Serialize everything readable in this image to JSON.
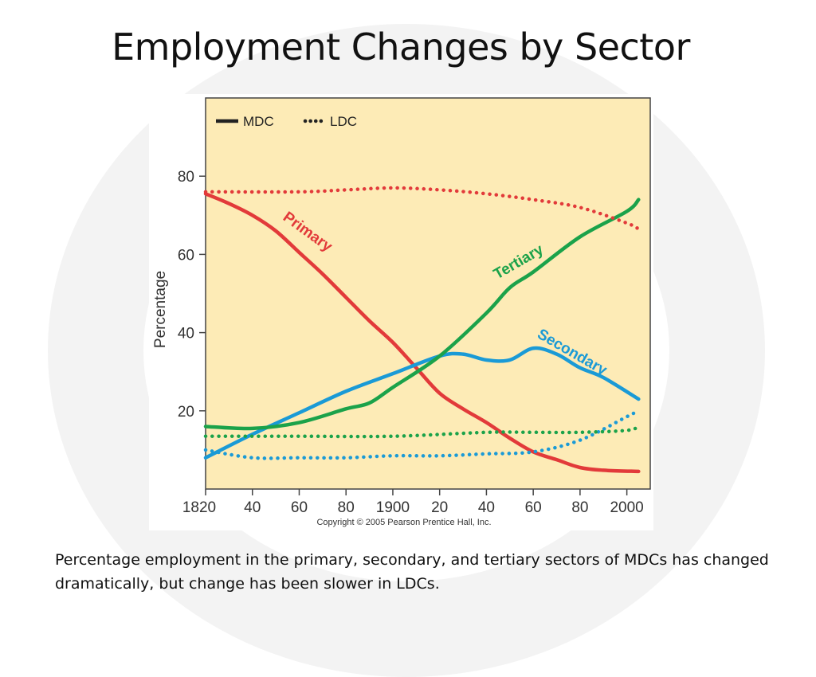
{
  "slide": {
    "title": "Employment Changes by Sector",
    "caption": "Percentage employment in the primary, secondary, and tertiary sectors of MDCs has changed dramatically, but change has been slower in LDCs."
  },
  "chart_data": {
    "type": "line",
    "title": "",
    "xlabel": "",
    "ylabel": "Percentage",
    "xlim": [
      1820,
      2010
    ],
    "ylim": [
      0,
      100
    ],
    "x_ticks": [
      1820,
      1840,
      1860,
      1880,
      1900,
      1920,
      1940,
      1960,
      1980,
      2000
    ],
    "x_tick_labels": [
      "1820",
      "40",
      "60",
      "80",
      "1900",
      "20",
      "40",
      "60",
      "80",
      "2000"
    ],
    "y_ticks": [
      20,
      40,
      60,
      80
    ],
    "y_tick_labels": [
      "20",
      "40",
      "60",
      "80"
    ],
    "legend": {
      "placement": "top-left",
      "entries": [
        {
          "label": "MDC",
          "style": "solid"
        },
        {
          "label": "LDC",
          "style": "dotted"
        }
      ]
    },
    "copyright": "Copyright © 2005 Pearson Prentice Hall, Inc.",
    "plot_background": "#fdebb6",
    "sectors": [
      {
        "key": "primary",
        "label": "Primary",
        "color": "#e23a3a"
      },
      {
        "key": "secondary",
        "label": "Secondary",
        "color": "#1a9ad6"
      },
      {
        "key": "tertiary",
        "label": "Tertiary",
        "color": "#1ba24a"
      }
    ],
    "series": [
      {
        "sector": "primary",
        "group": "MDC",
        "style": "solid",
        "x": [
          1820,
          1830,
          1840,
          1850,
          1860,
          1870,
          1880,
          1890,
          1900,
          1910,
          1920,
          1930,
          1940,
          1950,
          1960,
          1970,
          1980,
          1990,
          2005
        ],
        "y": [
          75.5,
          73,
          70,
          66,
          60.5,
          55,
          49,
          43,
          37.5,
          31,
          24.5,
          20.5,
          17,
          13,
          9.5,
          7.5,
          5.5,
          4.8,
          4.5
        ]
      },
      {
        "sector": "secondary",
        "group": "MDC",
        "style": "solid",
        "x": [
          1820,
          1840,
          1860,
          1880,
          1900,
          1920,
          1930,
          1940,
          1950,
          1960,
          1970,
          1980,
          1990,
          2005
        ],
        "y": [
          8,
          14,
          19.5,
          25,
          29.5,
          34,
          34.5,
          33,
          33,
          36,
          34.5,
          31,
          28.5,
          23
        ]
      },
      {
        "sector": "tertiary",
        "group": "MDC",
        "style": "solid",
        "x": [
          1820,
          1840,
          1860,
          1880,
          1890,
          1900,
          1920,
          1940,
          1950,
          1960,
          1980,
          2000,
          2005
        ],
        "y": [
          16,
          15.5,
          17,
          20.5,
          22,
          26,
          34,
          45,
          51.5,
          55.5,
          64.5,
          71,
          74
        ]
      },
      {
        "sector": "primary",
        "group": "LDC",
        "style": "dotted",
        "x": [
          1820,
          1860,
          1880,
          1900,
          1920,
          1940,
          1960,
          1980,
          2000,
          2005
        ],
        "y": [
          76,
          76,
          76.5,
          77,
          76.5,
          75.5,
          74,
          72,
          68,
          66.5
        ]
      },
      {
        "sector": "secondary",
        "group": "LDC",
        "style": "dotted",
        "x": [
          1820,
          1840,
          1860,
          1880,
          1900,
          1920,
          1940,
          1960,
          1980,
          2000,
          2005
        ],
        "y": [
          10,
          8,
          8,
          8,
          8.5,
          8.5,
          9,
          9.5,
          12.5,
          18.5,
          20
        ]
      },
      {
        "sector": "tertiary",
        "group": "LDC",
        "style": "dotted",
        "x": [
          1820,
          1860,
          1900,
          1940,
          1960,
          1980,
          2000,
          2005
        ],
        "y": [
          13.5,
          13.5,
          13.5,
          14.5,
          14.5,
          14.5,
          15,
          16
        ]
      }
    ]
  }
}
